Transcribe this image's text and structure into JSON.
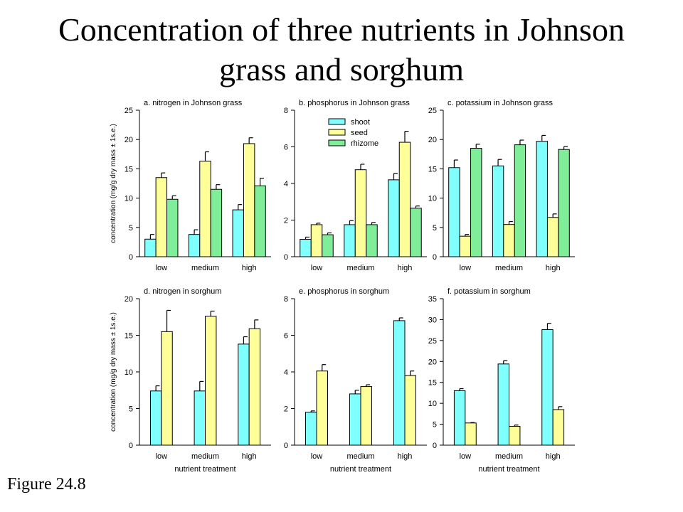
{
  "page": {
    "title_line1": "Concentration of three nutrients in Johnson",
    "title_line2": "grass and sorghum",
    "caption": "Figure 24.8"
  },
  "colors": {
    "shoot": "#80ffff",
    "seed": "#ffff99",
    "rhizome": "#80ee99",
    "error": "#000000"
  },
  "chart_data": [
    {
      "type": "bar",
      "title": "a. nitrogen in Johnson grass",
      "categories": [
        "low",
        "medium",
        "high"
      ],
      "ylabel": "concentration (mg/g dry mass ± 1s.e.)",
      "xlabel": "",
      "ylim": [
        0,
        25
      ],
      "yticks": [
        0,
        5,
        10,
        15,
        20,
        25
      ],
      "series": [
        {
          "name": "shoot",
          "values": [
            3.0,
            3.8,
            8.0
          ],
          "errors": [
            0.8,
            0.8,
            0.9
          ]
        },
        {
          "name": "seed",
          "values": [
            13.5,
            16.3,
            19.3
          ],
          "errors": [
            0.8,
            1.6,
            1.0
          ]
        },
        {
          "name": "rhizome",
          "values": [
            9.8,
            11.5,
            12.1
          ],
          "errors": [
            0.6,
            0.8,
            1.3
          ]
        }
      ]
    },
    {
      "type": "bar",
      "title": "b. phosphorus in Johnson grass",
      "categories": [
        "low",
        "medium",
        "high"
      ],
      "ylabel": "",
      "xlabel": "",
      "ylim": [
        0,
        8
      ],
      "yticks": [
        0,
        2,
        4,
        6,
        8
      ],
      "legend": {
        "placement": "top-left",
        "entries": [
          "shoot",
          "seed",
          "rhizome"
        ]
      },
      "series": [
        {
          "name": "shoot",
          "values": [
            0.95,
            1.75,
            4.2
          ],
          "errors": [
            0.12,
            0.22,
            0.35
          ]
        },
        {
          "name": "seed",
          "values": [
            1.75,
            4.75,
            6.25
          ],
          "errors": [
            0.08,
            0.3,
            0.6
          ]
        },
        {
          "name": "rhizome",
          "values": [
            1.2,
            1.75,
            2.65
          ],
          "errors": [
            0.1,
            0.12,
            0.12
          ]
        }
      ]
    },
    {
      "type": "bar",
      "title": "c. potassium in Johnson grass",
      "categories": [
        "low",
        "medium",
        "high"
      ],
      "ylabel": "",
      "xlabel": "",
      "ylim": [
        0,
        25
      ],
      "yticks": [
        0,
        5,
        10,
        15,
        20,
        25
      ],
      "series": [
        {
          "name": "shoot",
          "values": [
            15.2,
            15.5,
            19.7
          ],
          "errors": [
            1.3,
            1.1,
            1.0
          ]
        },
        {
          "name": "seed",
          "values": [
            3.5,
            5.5,
            6.7
          ],
          "errors": [
            0.3,
            0.5,
            0.6
          ]
        },
        {
          "name": "rhizome",
          "values": [
            18.5,
            19.1,
            18.3
          ],
          "errors": [
            0.7,
            0.8,
            0.5
          ]
        }
      ]
    },
    {
      "type": "bar",
      "title": "d. nitrogen in sorghum",
      "categories": [
        "low",
        "medium",
        "high"
      ],
      "ylabel": "concentration (mg/g dry mass ± 1s.e.)",
      "xlabel": "nutrient treatment",
      "ylim": [
        0,
        20
      ],
      "yticks": [
        0,
        5,
        10,
        15,
        20
      ],
      "series": [
        {
          "name": "shoot",
          "values": [
            7.4,
            7.4,
            13.8
          ],
          "errors": [
            0.7,
            1.3,
            1.0
          ]
        },
        {
          "name": "seed",
          "values": [
            15.5,
            17.6,
            15.9
          ],
          "errors": [
            2.9,
            0.7,
            1.2
          ]
        }
      ]
    },
    {
      "type": "bar",
      "title": "e. phosphorus in sorghum",
      "categories": [
        "low",
        "medium",
        "high"
      ],
      "ylabel": "",
      "xlabel": "nutrient treatment",
      "ylim": [
        0,
        8
      ],
      "yticks": [
        0,
        2,
        4,
        6,
        8
      ],
      "series": [
        {
          "name": "shoot",
          "values": [
            1.8,
            2.8,
            6.8
          ],
          "errors": [
            0.07,
            0.2,
            0.15
          ]
        },
        {
          "name": "seed",
          "values": [
            4.05,
            3.2,
            3.8
          ],
          "errors": [
            0.35,
            0.1,
            0.25
          ]
        }
      ]
    },
    {
      "type": "bar",
      "title": "f. potassium in sorghum",
      "categories": [
        "low",
        "medium",
        "high"
      ],
      "ylabel": "",
      "xlabel": "nutrient treatment",
      "ylim": [
        0,
        35
      ],
      "yticks": [
        0,
        5,
        10,
        15,
        20,
        25,
        30,
        35
      ],
      "series": [
        {
          "name": "shoot",
          "values": [
            13.0,
            19.4,
            27.6
          ],
          "errors": [
            0.5,
            0.8,
            1.5
          ]
        },
        {
          "name": "seed",
          "values": [
            5.3,
            4.5,
            8.5
          ],
          "errors": [
            0.1,
            0.3,
            0.7
          ]
        }
      ]
    }
  ]
}
